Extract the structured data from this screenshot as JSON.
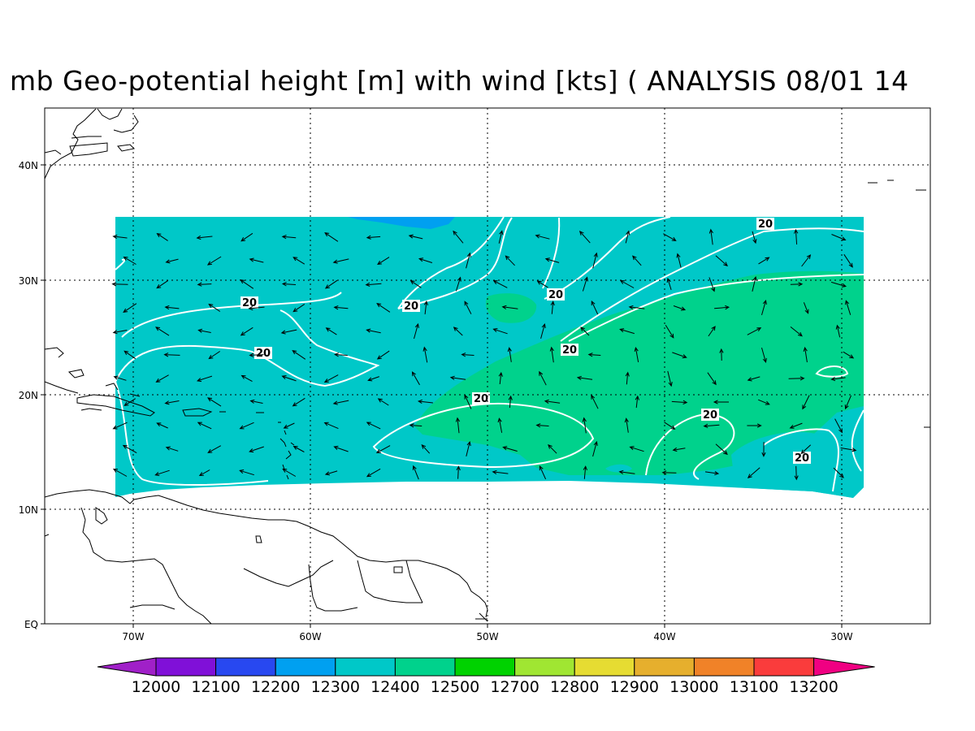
{
  "title": "mb Geo-potential height [m] with wind [kts] ( ANALYSIS 08/01 14",
  "axes": {
    "lat_ticks": [
      "40N",
      "30N",
      "20N",
      "10N",
      "EQ"
    ],
    "lon_ticks": [
      "70W",
      "60W",
      "50W",
      "40W",
      "30W"
    ]
  },
  "contour_labels": [
    "20",
    "20",
    "20",
    "20",
    "20",
    "20",
    "20",
    "20",
    "20"
  ],
  "colorbar": {
    "labels": [
      "12000",
      "12100",
      "12200",
      "12300",
      "12400",
      "12500",
      "12700",
      "12800",
      "12900",
      "13000",
      "13100",
      "13200"
    ],
    "colors": [
      "#a020c8",
      "#8010d8",
      "#2848f0",
      "#00a0f0",
      "#00c8c8",
      "#00d28c",
      "#00d200",
      "#a0e632",
      "#e6dc32",
      "#e6af2d",
      "#f08228",
      "#fa3c3c",
      "#f00082"
    ]
  },
  "field_colors": {
    "teal": "#00c8c8",
    "green": "#00d28c",
    "blue": "#00a0f0",
    "contour": "#ffffff",
    "land": "#000000"
  }
}
